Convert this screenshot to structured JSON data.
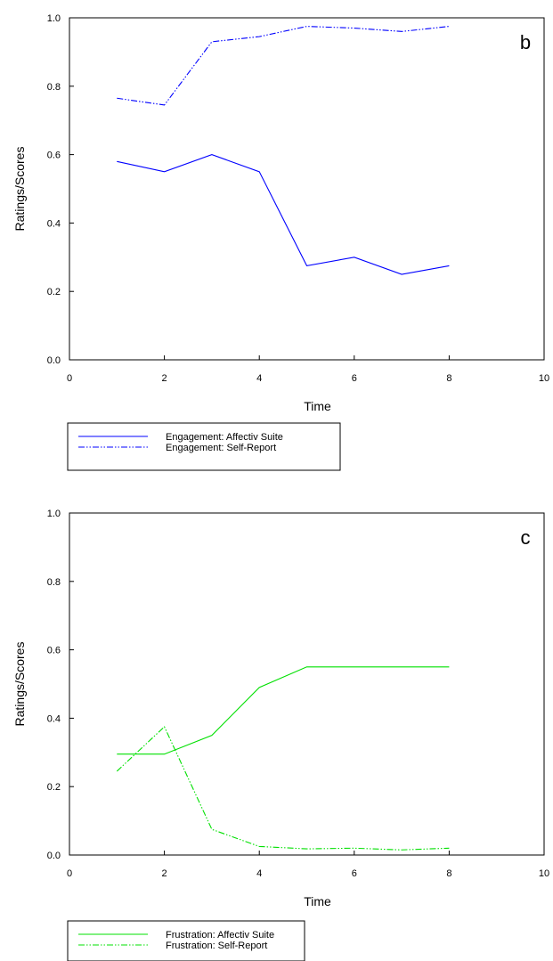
{
  "chart_data": [
    {
      "type": "line",
      "panel_label": "b",
      "xlabel": "Time",
      "ylabel": "Ratings/Scores",
      "xlim": [
        0,
        10
      ],
      "ylim": [
        0.0,
        1.0
      ],
      "x_ticks": [
        "0",
        "2",
        "4",
        "6",
        "8",
        "10"
      ],
      "y_ticks": [
        "0.0",
        "0.2",
        "0.4",
        "0.6",
        "0.8",
        "1.0"
      ],
      "grid": false,
      "legend_placement": "below",
      "x": [
        1,
        2,
        3,
        4,
        5,
        6,
        7,
        8
      ],
      "series": [
        {
          "name": "Engagement: Affectiv Suite",
          "color": "#0000ff",
          "style": "solid",
          "values": [
            0.58,
            0.55,
            0.6,
            0.55,
            0.275,
            0.3,
            0.25,
            0.275
          ]
        },
        {
          "name": "Engagement: Self-Report",
          "color": "#0000ff",
          "style": "dashdotdot",
          "values": [
            0.765,
            0.745,
            0.93,
            0.945,
            0.975,
            0.97,
            0.96,
            0.975
          ]
        }
      ]
    },
    {
      "type": "line",
      "panel_label": "c",
      "xlabel": "Time",
      "ylabel": "Ratings/Scores",
      "xlim": [
        0,
        10
      ],
      "ylim": [
        0.0,
        1.0
      ],
      "x_ticks": [
        "0",
        "2",
        "4",
        "6",
        "8",
        "10"
      ],
      "y_ticks": [
        "0.0",
        "0.2",
        "0.4",
        "0.6",
        "0.8",
        "1.0"
      ],
      "grid": false,
      "legend_placement": "below",
      "x": [
        1,
        2,
        3,
        4,
        5,
        6,
        7,
        8
      ],
      "series": [
        {
          "name": "Frustration: Affectiv Suite",
          "color": "#00e000",
          "style": "solid",
          "values": [
            0.295,
            0.295,
            0.35,
            0.49,
            0.55,
            0.55,
            0.55,
            0.55
          ]
        },
        {
          "name": "Frustration: Self-Report",
          "color": "#00e000",
          "style": "dashdotdot",
          "values": [
            0.245,
            0.375,
            0.075,
            0.025,
            0.018,
            0.02,
            0.015,
            0.02
          ]
        }
      ]
    }
  ]
}
